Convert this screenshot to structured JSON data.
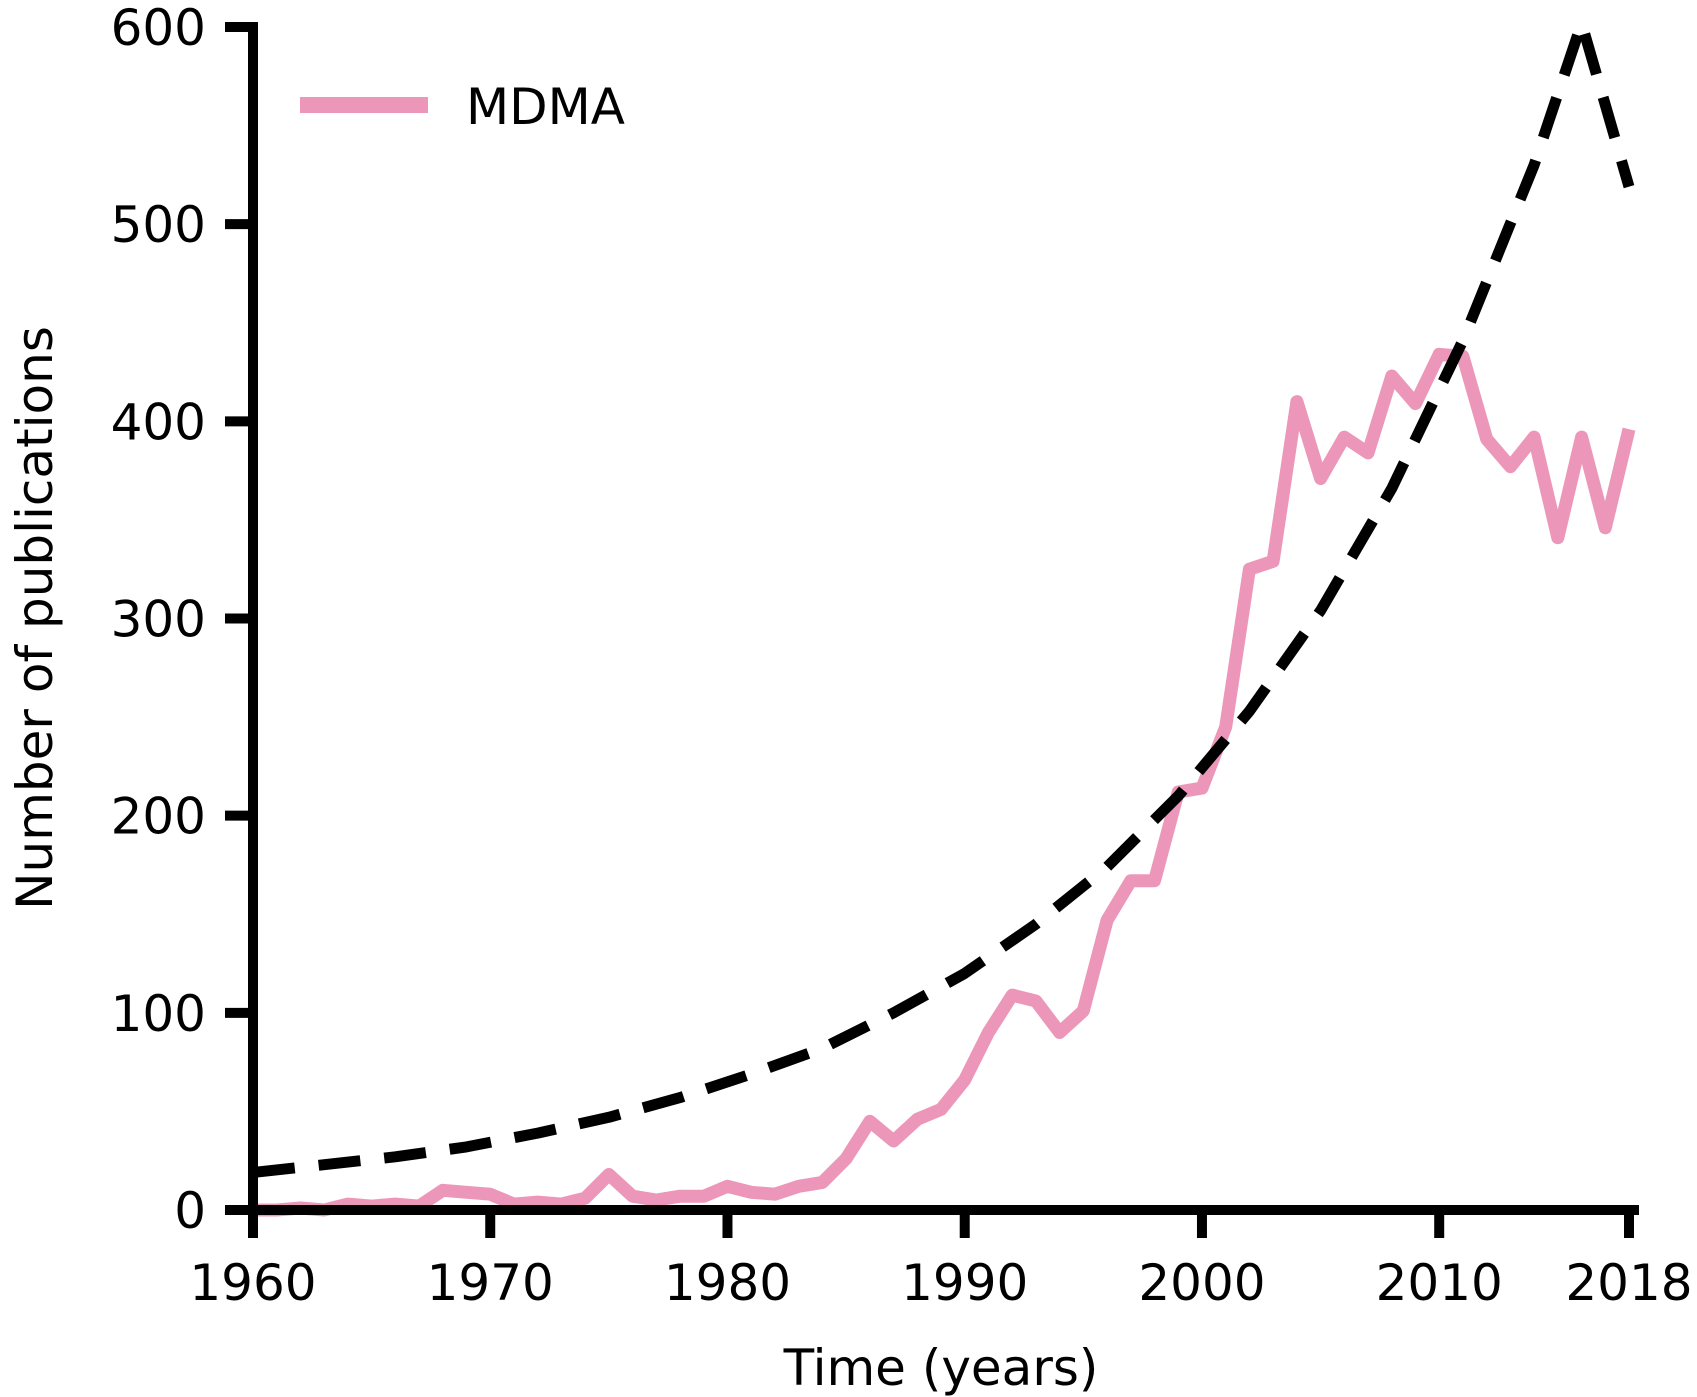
{
  "chart_data": {
    "type": "line",
    "title": "",
    "xlabel": "Time (years)",
    "ylabel": "Number of publications",
    "xlim": [
      1960,
      2018
    ],
    "ylim": [
      0,
      600
    ],
    "x_ticks": [
      "1960",
      "1970",
      "1980",
      "1990",
      "2000",
      "2010",
      "2018"
    ],
    "y_ticks": [
      "0",
      "100",
      "200",
      "300",
      "400",
      "500",
      "600"
    ],
    "grid": false,
    "legend_position": "top-left",
    "series": [
      {
        "name": "MDMA",
        "color": "#ec97b9",
        "style": "solid",
        "x": [
          1960,
          1961,
          1962,
          1963,
          1964,
          1965,
          1966,
          1967,
          1968,
          1969,
          1970,
          1971,
          1972,
          1973,
          1974,
          1975,
          1976,
          1977,
          1978,
          1979,
          1980,
          1981,
          1982,
          1983,
          1984,
          1985,
          1986,
          1987,
          1988,
          1989,
          1990,
          1991,
          1992,
          1993,
          1994,
          1995,
          1996,
          1997,
          1998,
          1999,
          2000,
          2001,
          2002,
          2003,
          2004,
          2005,
          2006,
          2007,
          2008,
          2009,
          2010,
          2011,
          2012,
          2013,
          2014,
          2015,
          2016,
          2017,
          2018
        ],
        "values": [
          0,
          0,
          1,
          0,
          3,
          2,
          3,
          2,
          10,
          9,
          8,
          3,
          4,
          3,
          6,
          18,
          7,
          5,
          7,
          7,
          12,
          9,
          8,
          12,
          14,
          26,
          45,
          35,
          46,
          51,
          66,
          90,
          109,
          106,
          90,
          101,
          147,
          167,
          167,
          212,
          214,
          245,
          325,
          329,
          410,
          371,
          392,
          384,
          423,
          409,
          434,
          433,
          391,
          377,
          392,
          341,
          392,
          346,
          396
        ]
      },
      {
        "name": "",
        "color": "#000000",
        "style": "dashed",
        "x": [
          1960,
          1963,
          1966,
          1969,
          1972,
          1975,
          1978,
          1981,
          1984,
          1987,
          1990,
          1993,
          1996,
          1999,
          2002,
          2005,
          2008,
          2011,
          2014,
          2016,
          2018
        ],
        "values": [
          19,
          23,
          27,
          32,
          39,
          47,
          57,
          69,
          82,
          100,
          120,
          145,
          174,
          210,
          253,
          304,
          366,
          441,
          530,
          602,
          519
        ]
      }
    ]
  }
}
